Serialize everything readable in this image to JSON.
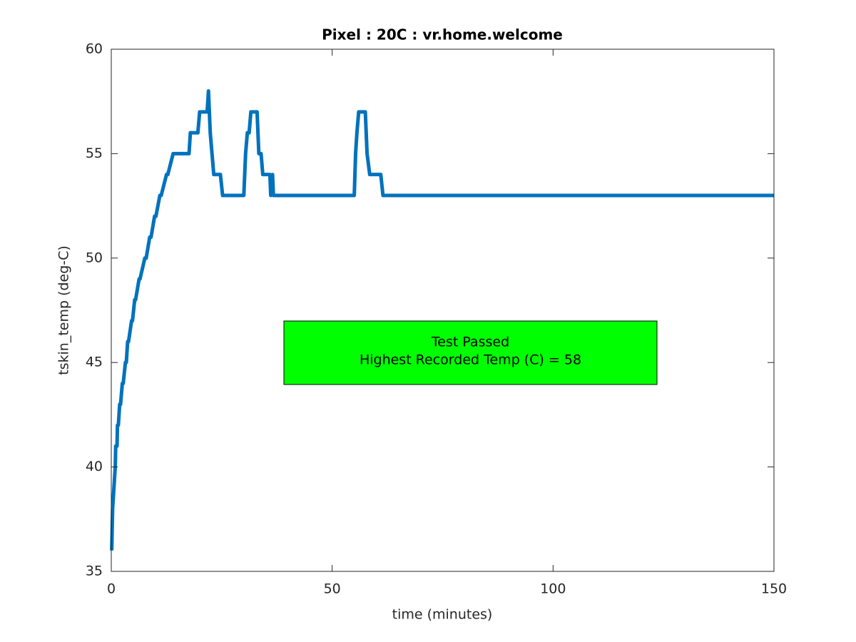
{
  "chart_data": {
    "type": "line",
    "title": "Pixel : 20C : vr.home.welcome",
    "xlabel": "time (minutes)",
    "ylabel": "tskin_temp (deg-C)",
    "x": [
      0.1,
      0.3,
      0.6,
      0.9,
      1.0,
      1.3,
      1.4,
      1.6,
      1.9,
      2.1,
      2.5,
      2.7,
      3.2,
      3.4,
      3.7,
      3.9,
      4.6,
      4.8,
      5.3,
      5.5,
      6.3,
      6.5,
      7.6,
      7.9,
      8.7,
      9.0,
      9.8,
      10.1,
      11.0,
      11.3,
      12.5,
      12.8,
      14.0,
      14.4,
      17.6,
      17.9,
      19.6,
      20.0,
      21.7,
      22.0,
      22.4,
      22.8,
      23.2,
      24.7,
      25.2,
      30.0,
      30.4,
      30.8,
      31.2,
      31.6,
      33.0,
      33.4,
      33.9,
      34.3,
      35.9,
      36.1,
      36.5,
      36.7,
      55.0,
      55.3,
      55.6,
      56.0,
      57.5,
      57.9,
      58.5,
      61.0,
      61.5,
      150
    ],
    "values": [
      36,
      38,
      39,
      40,
      41,
      41,
      42,
      42,
      43,
      43,
      44,
      44,
      45,
      45,
      46,
      46,
      47,
      47,
      48,
      48,
      49,
      49,
      50,
      50,
      51,
      51,
      52,
      52,
      53,
      53,
      54,
      54,
      55,
      55,
      55,
      56,
      56,
      57,
      57,
      58,
      56,
      55,
      54,
      54,
      53,
      53,
      55,
      56,
      56,
      57,
      57,
      55,
      55,
      54,
      54,
      53,
      54,
      53,
      53,
      55,
      56,
      57,
      57,
      55,
      54,
      54,
      53,
      53
    ],
    "color": "#0072bd",
    "xlim": [
      0,
      150
    ],
    "xticks": [
      0,
      50,
      100,
      150
    ],
    "ylim": [
      35,
      60
    ],
    "yticks": [
      35,
      40,
      45,
      50,
      55,
      60
    ],
    "grid": false,
    "annotation": [
      "Test Passed",
      "Highest Recorded Temp (C) = 58"
    ],
    "annotation_color": "#00ff00"
  }
}
